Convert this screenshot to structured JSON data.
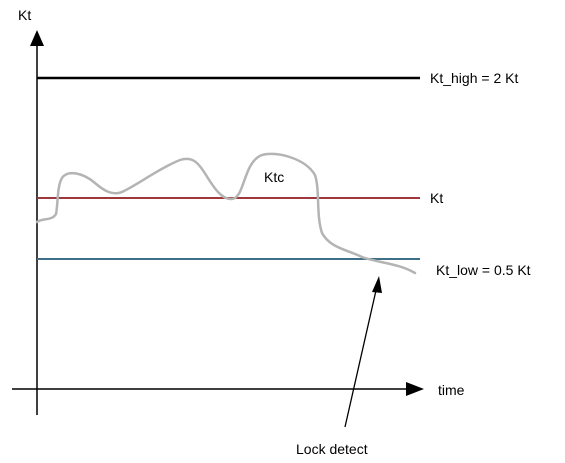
{
  "labels": {
    "y_axis": "Kt",
    "x_axis": "time",
    "high_line": "Kt_high = 2 Kt",
    "mid_line": "Kt",
    "low_line": "Kt_low = 0.5 Kt",
    "curve": "Ktc",
    "annotation": "Lock detect"
  },
  "colors": {
    "axis": "#000000",
    "high_line": "#000000",
    "mid_line": "#a0373a",
    "low_line": "#3f6f86",
    "curve": "#b4b4b4"
  }
}
